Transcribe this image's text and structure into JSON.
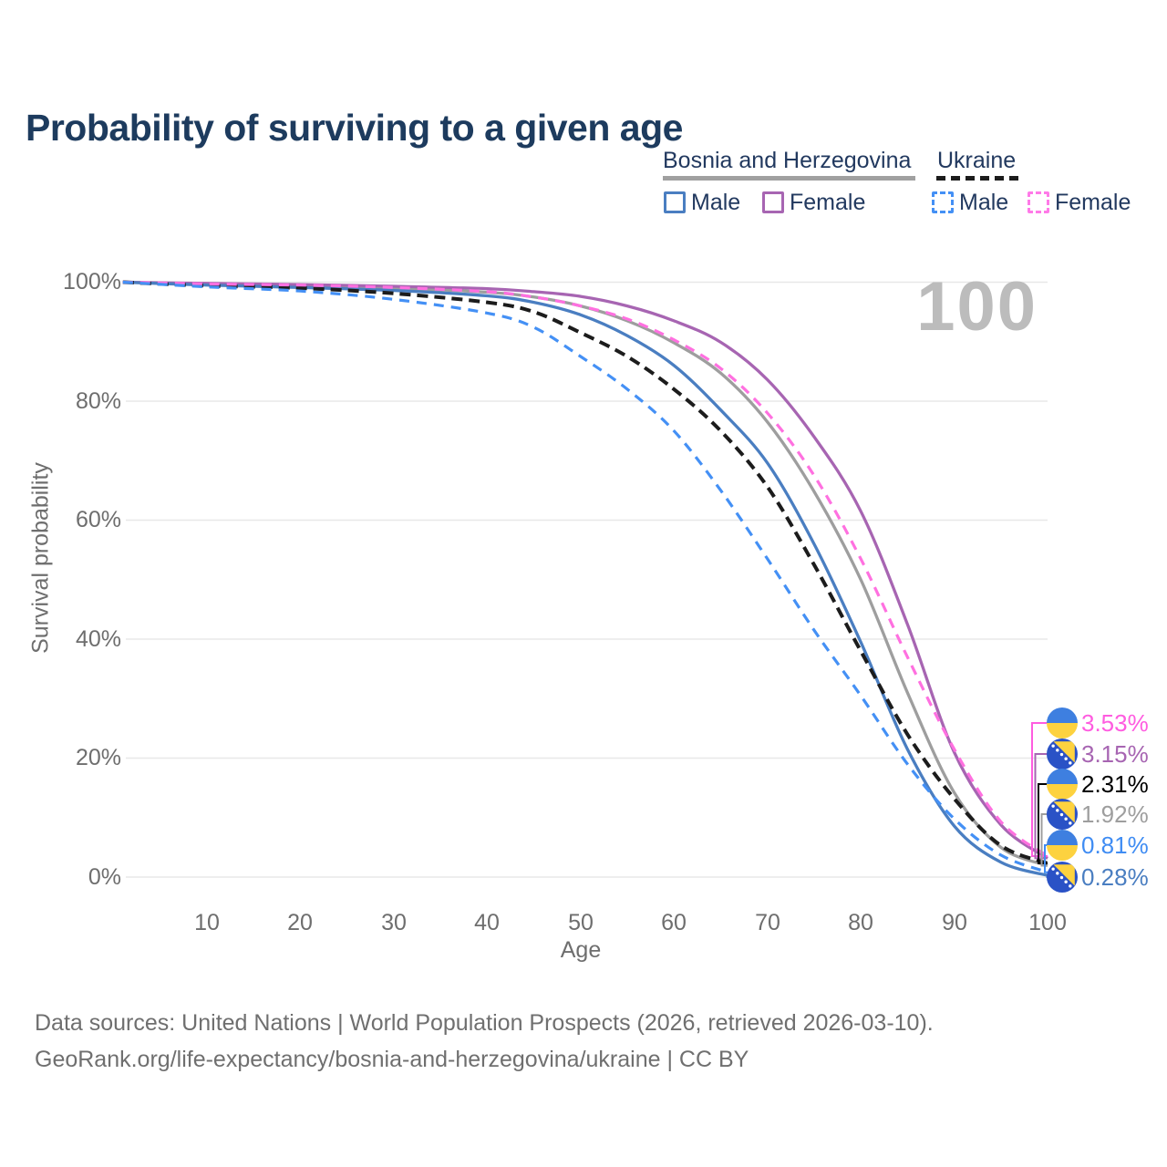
{
  "title": "Probability of surviving to a given age",
  "watermark_age": "100",
  "legend": {
    "groups": [
      {
        "label": "Bosnia and Herzegovina",
        "line_style": "solid",
        "underline_color": "#a0a0a0",
        "items": [
          {
            "label": "Male",
            "color": "#4a7ec1",
            "style": "solid"
          },
          {
            "label": "Female",
            "color": "#a765b2",
            "style": "solid"
          }
        ]
      },
      {
        "label": "Ukraine",
        "line_style": "dashed",
        "underline_color": "#1c1c1c",
        "items": [
          {
            "label": "Male",
            "color": "#4490f5",
            "style": "dashed"
          },
          {
            "label": "Female",
            "color": "#ff7ae8",
            "style": "dashed"
          }
        ]
      }
    ]
  },
  "axis": {
    "x_label": "Age",
    "y_label": "Survival probability",
    "x_tick_labels": [
      "10",
      "20",
      "30",
      "40",
      "50",
      "60",
      "70",
      "80",
      "90",
      "100"
    ],
    "y_tick_labels": [
      "100%",
      "80%",
      "60%",
      "40%",
      "20%",
      "0%"
    ]
  },
  "chart_data": {
    "type": "line",
    "title": "Probability of surviving to a given age",
    "xlabel": "Age",
    "ylabel": "Survival probability",
    "xlim": [
      1,
      100
    ],
    "ylim": [
      0,
      100
    ],
    "grid": "horizontal",
    "y_tick_values": [
      0,
      20,
      40,
      60,
      80,
      100
    ],
    "x_tick_values": [
      10,
      20,
      30,
      40,
      50,
      60,
      70,
      80,
      90,
      100
    ],
    "x": [
      1,
      10,
      20,
      30,
      40,
      45,
      50,
      55,
      60,
      65,
      70,
      75,
      80,
      85,
      90,
      95,
      100
    ],
    "series": [
      {
        "name": "bosnia_and_herzegovina_all",
        "country": "Bosnia and Herzegovina",
        "sex": "All",
        "style": "solid",
        "color": "#9e9e9e",
        "values": [
          100,
          99.6,
          99.4,
          99.0,
          98.3,
          97.5,
          96.0,
          93.5,
          89.8,
          84.7,
          76.5,
          64.8,
          50.0,
          31.0,
          14.2,
          5.0,
          1.92
        ]
      },
      {
        "name": "bosnia_and_herzegovina_female",
        "country": "Bosnia and Herzegovina",
        "sex": "Female",
        "style": "solid",
        "color": "#a765b2",
        "values": [
          100,
          99.8,
          99.6,
          99.3,
          98.9,
          98.4,
          97.6,
          96.0,
          93.5,
          89.9,
          83.6,
          74.0,
          61.5,
          42.5,
          21.0,
          8.8,
          3.15
        ]
      },
      {
        "name": "bosnia_and_herzegovina_male",
        "country": "Bosnia and Herzegovina",
        "sex": "Male",
        "style": "solid",
        "color": "#4a7ec1",
        "values": [
          100,
          99.5,
          99.1,
          98.6,
          97.7,
          96.6,
          94.5,
          91.0,
          86.0,
          78.5,
          69.6,
          56.0,
          39.5,
          21.5,
          8.6,
          2.5,
          0.28
        ]
      },
      {
        "name": "ukraine_all",
        "country": "Ukraine",
        "sex": "All",
        "style": "dashed",
        "color": "#1c1c1c",
        "values": [
          100,
          99.4,
          99.0,
          98.1,
          96.6,
          95.0,
          91.5,
          87.5,
          82.0,
          75.0,
          65.6,
          52.5,
          38.0,
          24.0,
          13.2,
          5.3,
          2.31
        ]
      },
      {
        "name": "ukraine_female",
        "country": "Ukraine",
        "sex": "Female",
        "style": "dashed",
        "color": "#ff70e0",
        "values": [
          100,
          99.7,
          99.5,
          99.1,
          98.4,
          97.5,
          96.0,
          93.8,
          90.3,
          85.5,
          78.0,
          67.5,
          53.5,
          37.0,
          21.5,
          9.3,
          3.53
        ]
      },
      {
        "name": "ukraine_male",
        "country": "Ukraine",
        "sex": "Male",
        "style": "dashed",
        "color": "#4490f5",
        "values": [
          100,
          99.2,
          98.5,
          97.1,
          94.8,
          92.4,
          87.5,
          82.0,
          75.0,
          65.0,
          53.5,
          41.5,
          30.5,
          19.0,
          9.8,
          3.7,
          0.81
        ]
      }
    ]
  },
  "end_labels": [
    {
      "value": "3.53%",
      "color": "#ff5ce0",
      "flag": "ukraine-flag-icon",
      "series_index": 4
    },
    {
      "value": "3.15%",
      "color": "#a765b2",
      "flag": "bosnia-flag-icon",
      "series_index": 1
    },
    {
      "value": "2.31%",
      "color": "#000000",
      "flag": "ukraine-flag-icon",
      "series_index": 3
    },
    {
      "value": "1.92%",
      "color": "#9e9e9e",
      "flag": "bosnia-flag-icon",
      "series_index": 0
    },
    {
      "value": "0.81%",
      "color": "#3f8cf3",
      "flag": "ukraine-flag-icon",
      "series_index": 5
    },
    {
      "value": "0.28%",
      "color": "#4a7ec1",
      "flag": "bosnia-flag-icon",
      "series_index": 2
    }
  ],
  "footer": {
    "line1": "Data sources: United Nations | World Population Prospects (2026, retrieved 2026-03-10).",
    "line2": "GeoRank.org/life-expectancy/bosnia-and-herzegovina/ukraine | CC BY"
  }
}
